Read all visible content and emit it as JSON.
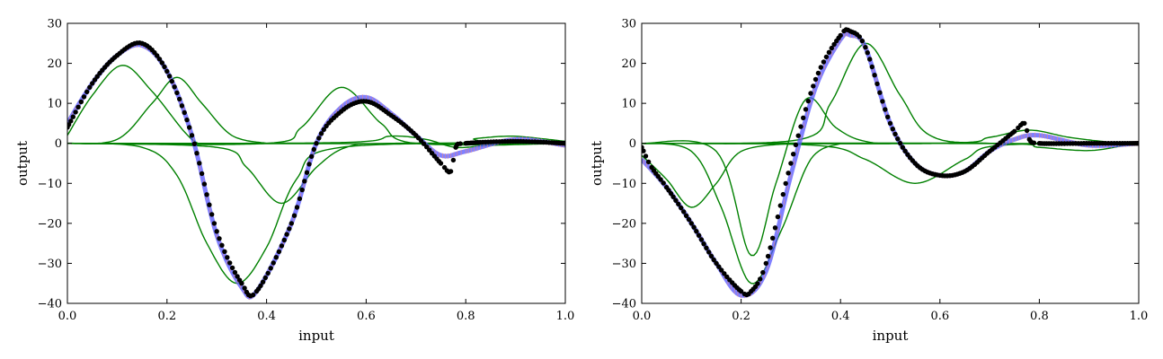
{
  "chart_data": [
    {
      "type": "line",
      "title": "",
      "xlabel": "input",
      "ylabel": "output",
      "xlim": [
        0.0,
        1.0
      ],
      "ylim": [
        -40,
        30
      ],
      "xticks": [
        "0.0",
        "0.2",
        "0.4",
        "0.6",
        "0.8",
        "1.0"
      ],
      "yticks": [
        "−40",
        "−30",
        "−20",
        "−10",
        "0",
        "10",
        "20",
        "30"
      ],
      "grid": false,
      "colors": {
        "data": "#000000",
        "fit": "#5555ff",
        "components": "#008000",
        "samples": "#ff8c69"
      },
      "series": [
        {
          "role": "data",
          "x": [
            0.0,
            0.05,
            0.1,
            0.15,
            0.2,
            0.25,
            0.3,
            0.35,
            0.38,
            0.45,
            0.5,
            0.55,
            0.6,
            0.65,
            0.7,
            0.75,
            0.77,
            0.78,
            0.8,
            0.9,
            1.0
          ],
          "y": [
            4,
            15,
            22,
            25,
            18,
            2,
            -22,
            -35,
            -37,
            -20,
            0,
            8,
            10.5,
            7,
            2,
            -5,
            -7,
            -1,
            0,
            0.5,
            0
          ]
        },
        {
          "role": "fit",
          "x": [
            0.0,
            0.05,
            0.1,
            0.15,
            0.2,
            0.25,
            0.3,
            0.35,
            0.38,
            0.45,
            0.5,
            0.55,
            0.6,
            0.65,
            0.7,
            0.75,
            0.8,
            0.9,
            1.0
          ],
          "y": [
            5,
            15,
            22,
            24.5,
            18,
            2,
            -23,
            -36,
            -37,
            -20,
            0,
            9,
            11.5,
            7.5,
            2,
            -3,
            -2,
            1,
            -0.5
          ]
        },
        {
          "role": "component",
          "x": [
            0.0,
            0.05,
            0.11,
            0.17,
            0.25,
            0.3,
            0.4
          ],
          "y": [
            2,
            12,
            19.5,
            13,
            1,
            0,
            0
          ]
        },
        {
          "role": "component",
          "x": [
            0.0,
            0.1,
            0.17,
            0.22,
            0.27,
            0.33,
            0.4
          ],
          "y": [
            0,
            1,
            10,
            16.5,
            10,
            2,
            0
          ]
        },
        {
          "role": "component",
          "x": [
            0.0,
            0.15,
            0.22,
            0.28,
            0.34,
            0.4,
            0.46,
            0.55,
            1.0
          ],
          "y": [
            0,
            -1,
            -8,
            -25,
            -35,
            -26,
            -9,
            -1,
            0
          ]
        },
        {
          "role": "component",
          "x": [
            0.0,
            0.3,
            0.36,
            0.43,
            0.5,
            0.56,
            0.65,
            1.0
          ],
          "y": [
            0,
            -1,
            -6,
            -15,
            -6,
            -1,
            0,
            0
          ]
        },
        {
          "role": "component",
          "x": [
            0.0,
            0.4,
            0.47,
            0.55,
            0.63,
            0.7,
            1.0
          ],
          "y": [
            0,
            0,
            4,
            14,
            5,
            0,
            0
          ]
        },
        {
          "role": "component",
          "x": [
            0.0,
            0.55,
            0.65,
            0.72,
            0.78,
            0.85,
            1.0
          ],
          "y": [
            0,
            0.2,
            1.8,
            1,
            -1,
            -0.5,
            0
          ]
        },
        {
          "role": "component",
          "x": [
            0.0,
            0.75,
            0.82,
            0.89,
            0.95,
            1.0
          ],
          "y": [
            0,
            0,
            1.2,
            1.8,
            1.2,
            0.5
          ]
        }
      ]
    },
    {
      "type": "line",
      "title": "",
      "xlabel": "input",
      "ylabel": "output",
      "xlim": [
        0.0,
        1.0
      ],
      "ylim": [
        -40,
        30
      ],
      "xticks": [
        "0.0",
        "0.2",
        "0.4",
        "0.6",
        "0.8",
        "1.0"
      ],
      "yticks": [
        "−40",
        "−30",
        "−20",
        "−10",
        "0",
        "10",
        "20",
        "30"
      ],
      "grid": false,
      "colors": {
        "data": "#000000",
        "fit": "#5555ff",
        "components": "#008000",
        "samples": "#ff8c69"
      },
      "series": [
        {
          "role": "data",
          "x": [
            0.0,
            0.02,
            0.05,
            0.1,
            0.15,
            0.2,
            0.22,
            0.25,
            0.3,
            0.35,
            0.4,
            0.42,
            0.45,
            0.5,
            0.55,
            0.6,
            0.65,
            0.7,
            0.75,
            0.77,
            0.78,
            0.8,
            0.9,
            1.0
          ],
          "y": [
            -1,
            -6,
            -11,
            -20,
            -30,
            -37,
            -37,
            -30,
            -5,
            16,
            27,
            28,
            24,
            5,
            -5,
            -8,
            -7,
            -2,
            3,
            5,
            1,
            0,
            0,
            0
          ]
        },
        {
          "role": "fit",
          "x": [
            0.0,
            0.05,
            0.1,
            0.15,
            0.2,
            0.25,
            0.3,
            0.35,
            0.4,
            0.42,
            0.45,
            0.5,
            0.55,
            0.6,
            0.65,
            0.7,
            0.75,
            0.8,
            0.9,
            1.0
          ],
          "y": [
            -4,
            -11,
            -20,
            -30,
            -38,
            -32,
            -8,
            14,
            26,
            27,
            24,
            5,
            -5,
            -8,
            -7,
            -2,
            1,
            2,
            -0.5,
            0
          ]
        },
        {
          "role": "component",
          "x": [
            0.0,
            0.05,
            0.1,
            0.15,
            0.2,
            0.3
          ],
          "y": [
            -3,
            -9,
            -16,
            -10,
            -2,
            0
          ]
        },
        {
          "role": "component",
          "x": [
            0.0,
            0.1,
            0.16,
            0.22,
            0.28,
            0.34,
            0.4
          ],
          "y": [
            0,
            -2,
            -16,
            -35,
            -22,
            -4,
            0
          ]
        },
        {
          "role": "component",
          "x": [
            0.0,
            0.15,
            0.22,
            0.27,
            0.33,
            0.39,
            0.45,
            0.55,
            1.0
          ],
          "y": [
            0,
            -2,
            -28,
            -10,
            11,
            4,
            0.5,
            0,
            0
          ]
        },
        {
          "role": "component",
          "x": [
            0.0,
            0.32,
            0.38,
            0.45,
            0.52,
            0.58,
            0.7,
            1.0
          ],
          "y": [
            0,
            1,
            10,
            25,
            12,
            2,
            0,
            0
          ]
        },
        {
          "role": "component",
          "x": [
            0.0,
            0.35,
            0.45,
            0.55,
            0.65,
            0.72,
            1.0
          ],
          "y": [
            0,
            -0.5,
            -4,
            -10,
            -4,
            -0.5,
            0
          ]
        },
        {
          "role": "component",
          "x": [
            0.0,
            0.6,
            0.7,
            0.78,
            0.86,
            0.95,
            1.0
          ],
          "y": [
            0,
            0,
            1.5,
            3.3,
            1.5,
            0.2,
            0
          ]
        },
        {
          "role": "component",
          "x": [
            0.0,
            0.7,
            0.8,
            0.9,
            0.97,
            1.0
          ],
          "y": [
            0,
            0,
            -1,
            -1.8,
            -0.5,
            0.5
          ]
        }
      ]
    }
  ]
}
